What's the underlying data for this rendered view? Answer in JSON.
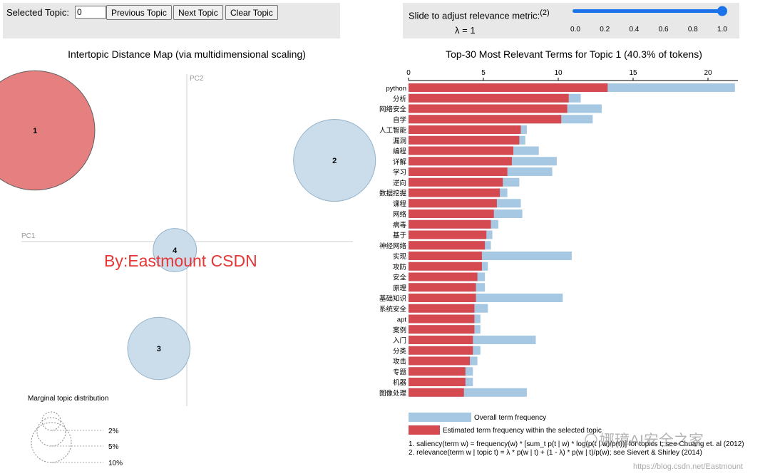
{
  "controls": {
    "selected_topic_label": "Selected Topic:",
    "selected_topic_value": "0",
    "prev_label": "Previous Topic",
    "next_label": "Next Topic",
    "clear_label": "Clear Topic",
    "slider_label": "Slide to adjust relevance metric:",
    "slider_note": "(2)",
    "lambda_text": "λ = 1",
    "slider_value": 1.0,
    "slider_ticks": [
      "0.0",
      "0.2",
      "0.4",
      "0.6",
      "0.8",
      "1.0"
    ]
  },
  "map": {
    "title": "Intertopic Distance Map (via multidimensional scaling)",
    "pc1_label": "PC1",
    "pc2_label": "PC2",
    "watermark": "By:Eastmount  CSDN",
    "marginal_title": "Marginal topic distribution",
    "marginal_labels": [
      "2%",
      "5%",
      "10%"
    ],
    "selected_color": "#e57a7a",
    "default_color": "#c9dcea"
  },
  "bar_footer": {
    "legend_overall": "Overall term frequency",
    "legend_estimated": "Estimated term frequency within the selected topic",
    "note1": "1. saliency(term w) = frequency(w) * [sum_t p(t | w) * log(p(t | w)/p(t))] for topics t; see Chuang et. al (2012)",
    "note2": "2. relevance(term w | topic t) = λ * p(w | t) + (1 - λ) * p(w | t)/p(w); see Sievert & Shirley (2014)",
    "brand_watermark": "娜璋AI安全之家",
    "url_watermark": "https://blog.csdn.net/Eastmount"
  },
  "colors": {
    "overall": "#a6c8e2",
    "estimated": "#d44a50",
    "slider": "#1a73e8"
  },
  "chart_data": [
    {
      "type": "scatter",
      "title": "Intertopic Distance Map (via multidimensional scaling)",
      "xlabel": "PC1",
      "ylabel": "PC2",
      "points": [
        {
          "topic": "1",
          "pc1": -0.38,
          "pc2": 0.26,
          "share": 40.3,
          "selected": true
        },
        {
          "topic": "2",
          "pc1": 0.37,
          "pc2": 0.19,
          "share": 19.0,
          "selected": false
        },
        {
          "topic": "3",
          "pc1": -0.07,
          "pc2": -0.25,
          "share": 11.0,
          "selected": false
        },
        {
          "topic": "4",
          "pc1": -0.03,
          "pc2": -0.02,
          "share": 5.3,
          "selected": false
        }
      ]
    },
    {
      "type": "bar",
      "orientation": "horizontal",
      "title": "Top-30 Most Relevant Terms for Topic 1 (40.3% of tokens)",
      "xlim": [
        0,
        22
      ],
      "xticks": [
        "0",
        "5",
        "10",
        "15",
        "20"
      ],
      "categories": [
        "python",
        "分析",
        "网络安全",
        "自学",
        "人工智能",
        "漏洞",
        "编程",
        "详解",
        "学习",
        "逆向",
        "数据挖掘",
        "课程",
        "网络",
        "病毒",
        "基于",
        "神经网络",
        "实现",
        "攻防",
        "安全",
        "原理",
        "基础知识",
        "系统安全",
        "apt",
        "案例",
        "入门",
        "分类",
        "攻击",
        "专题",
        "机器",
        "图像处理"
      ],
      "series": [
        {
          "name": "Overall term frequency",
          "values": [
            21.8,
            11.5,
            12.9,
            12.3,
            7.9,
            7.8,
            8.7,
            9.9,
            9.6,
            7.4,
            6.6,
            7.5,
            7.6,
            6.0,
            5.6,
            5.5,
            10.9,
            5.3,
            5.1,
            5.1,
            10.3,
            5.3,
            4.8,
            4.8,
            8.5,
            4.8,
            4.6,
            4.3,
            4.3,
            7.9
          ]
        },
        {
          "name": "Estimated term frequency within the selected topic",
          "values": [
            13.3,
            10.7,
            10.6,
            10.2,
            7.5,
            7.4,
            7.0,
            6.9,
            6.6,
            6.3,
            6.1,
            5.9,
            5.7,
            5.5,
            5.2,
            5.1,
            4.9,
            4.9,
            4.6,
            4.5,
            4.5,
            4.4,
            4.4,
            4.4,
            4.3,
            4.3,
            4.1,
            3.8,
            3.8,
            3.7
          ]
        }
      ]
    }
  ]
}
